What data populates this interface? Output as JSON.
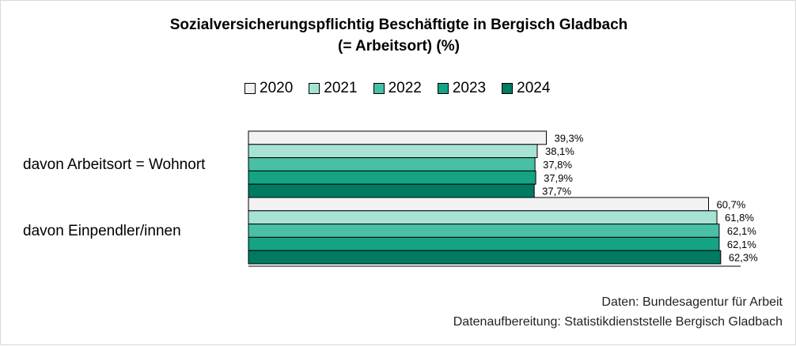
{
  "chart_data": {
    "type": "bar",
    "orientation": "horizontal",
    "title": "Sozialversicherungspflichtig Beschäftigte in Bergisch Gladbach",
    "subtitle": "(= Arbeitsort) (%)",
    "categories": [
      "davon Arbeitsort = Wohnort",
      "davon Einpendler/innen"
    ],
    "series": [
      {
        "name": "2020",
        "values": [
          39.3,
          60.7
        ],
        "labels": [
          "39,3%",
          "60,7%"
        ],
        "color": "#f2f2f2"
      },
      {
        "name": "2021",
        "values": [
          38.1,
          61.8
        ],
        "labels": [
          "38,1%",
          "61,8%"
        ],
        "color": "#a6e3d5"
      },
      {
        "name": "2022",
        "values": [
          37.8,
          62.1
        ],
        "labels": [
          "37,8%",
          "62,1%"
        ],
        "color": "#49bfa5"
      },
      {
        "name": "2023",
        "values": [
          37.9,
          62.1
        ],
        "labels": [
          "37,9%",
          "62,1%"
        ],
        "color": "#15a386"
      },
      {
        "name": "2024",
        "values": [
          37.7,
          62.3
        ],
        "labels": [
          "37,7%",
          "62,3%"
        ],
        "color": "#007a61"
      }
    ],
    "xlim": [
      0,
      100
    ],
    "legend_position": "top",
    "grid": false
  },
  "footer": {
    "source": "Daten: Bundesagentur für Arbeit",
    "processing": "Datenaufbereitung: Statistikdienststelle Bergisch Gladbach"
  }
}
